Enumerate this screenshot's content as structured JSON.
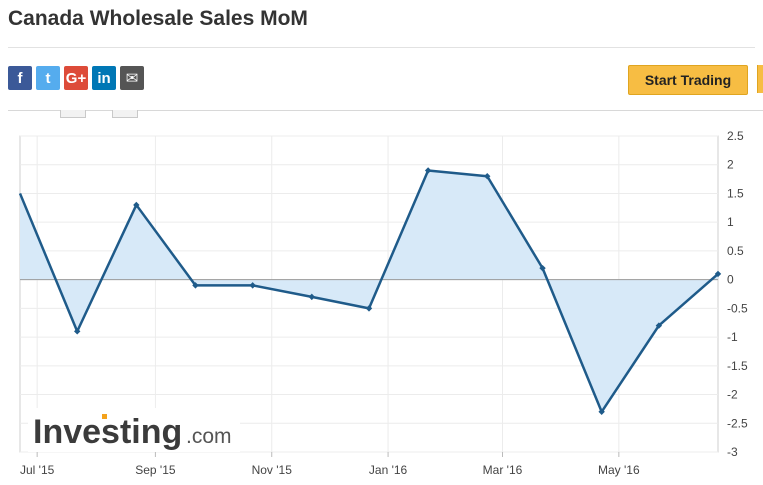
{
  "page_title": "Canada Wholesale Sales MoM",
  "share_icons": [
    {
      "name": "facebook-icon",
      "glyph": "f",
      "color": "#3b5998"
    },
    {
      "name": "twitter-icon",
      "glyph": "t",
      "color": "#55acee"
    },
    {
      "name": "google-plus-icon",
      "glyph": "G+",
      "color": "#dd4b39"
    },
    {
      "name": "linkedin-icon",
      "glyph": "in",
      "color": "#0077b5"
    },
    {
      "name": "email-icon",
      "glyph": "✉",
      "color": "#555555"
    }
  ],
  "start_trading_label": "Start Trading",
  "watermark": {
    "text": "Investing",
    "suffix": ".com"
  },
  "chart_data": {
    "type": "area",
    "x": [
      "2015-06-22",
      "2015-07-22",
      "2015-08-22",
      "2015-09-22",
      "2015-10-22",
      "2015-11-22",
      "2015-12-22",
      "2016-01-22",
      "2016-02-22",
      "2016-03-22",
      "2016-04-22",
      "2016-05-22",
      "2016-06-22"
    ],
    "values": [
      1.5,
      -0.9,
      1.3,
      -0.1,
      -0.1,
      -0.3,
      -0.5,
      1.9,
      1.8,
      0.2,
      -2.3,
      -0.8,
      0.1
    ],
    "x_tick_labels": [
      "Jul '15",
      "Sep '15",
      "Nov '15",
      "Jan '16",
      "Mar '16",
      "May '16"
    ],
    "x_tick_dates": [
      "2015-07-01",
      "2015-09-01",
      "2015-11-01",
      "2016-01-01",
      "2016-03-01",
      "2016-05-01"
    ],
    "y_ticks": [
      "2.5",
      "2",
      "1.5",
      "1",
      "0.5",
      "0",
      "-0.5",
      "-1",
      "-1.5",
      "-2",
      "-2.5",
      "-3"
    ],
    "ylim": [
      -3,
      2.5
    ],
    "xlim": [
      "2015-06-22",
      "2016-06-22"
    ],
    "title": "",
    "xlabel": "",
    "ylabel": "",
    "grid": true,
    "y_axis_side": "right",
    "line_color": "#1f5b8a",
    "fill_color": "#d7e9f8",
    "zero_line_color": "#9a9a9a"
  }
}
